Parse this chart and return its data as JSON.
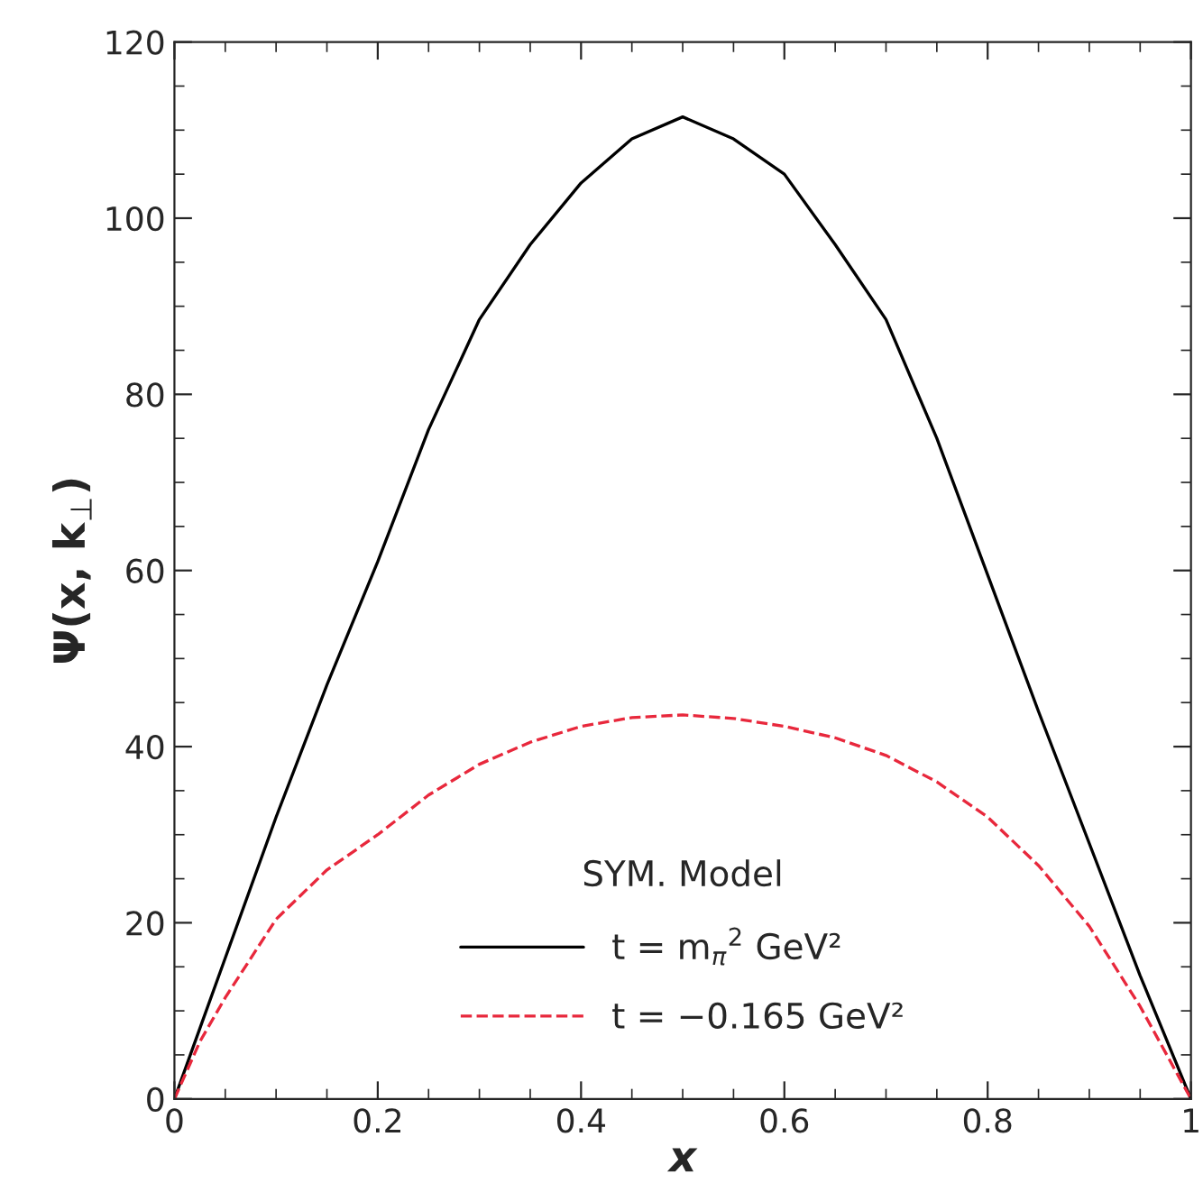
{
  "chart_data": {
    "type": "line",
    "xlabel": "x",
    "ylabel": "Ψ(x, k$_{⊥}$)",
    "legend_title": "SYM. Model",
    "xlim": [
      0,
      1
    ],
    "ylim": [
      0,
      120
    ],
    "xticks": [
      0,
      0.2,
      0.4,
      0.6,
      0.8,
      1
    ],
    "yticks": [
      0,
      20,
      40,
      60,
      80,
      100,
      120
    ],
    "legend": "bottom",
    "grid": false,
    "series": [
      {
        "name": "t = m$_{π}$$^{2}$ GeV²",
        "color": "#000000",
        "line_style": "solid",
        "x": [
          0,
          0.025,
          0.05,
          0.1,
          0.15,
          0.2,
          0.25,
          0.3,
          0.35,
          0.4,
          0.45,
          0.5,
          0.55,
          0.6,
          0.65,
          0.7,
          0.75,
          0.8,
          0.85,
          0.9,
          0.95,
          1
        ],
        "values": [
          0,
          8,
          16,
          32,
          47,
          61,
          76,
          88.5,
          97,
          104,
          109,
          111.5,
          109,
          105,
          97,
          88.5,
          75,
          59.5,
          44,
          29,
          14,
          0
        ]
      },
      {
        "name": "t = −0.165 GeV²",
        "color": "#e8283c",
        "line_style": "dashed",
        "x": [
          0,
          0.025,
          0.05,
          0.1,
          0.15,
          0.2,
          0.25,
          0.3,
          0.35,
          0.4,
          0.45,
          0.5,
          0.55,
          0.6,
          0.65,
          0.7,
          0.75,
          0.8,
          0.85,
          0.9,
          0.95,
          1
        ],
        "values": [
          0,
          6.5,
          11.5,
          20.4,
          26,
          30,
          34.5,
          38,
          40.5,
          42.3,
          43.3,
          43.6,
          43.2,
          42.3,
          41,
          39,
          36,
          32,
          26.5,
          19.6,
          10.5,
          0
        ]
      }
    ]
  }
}
